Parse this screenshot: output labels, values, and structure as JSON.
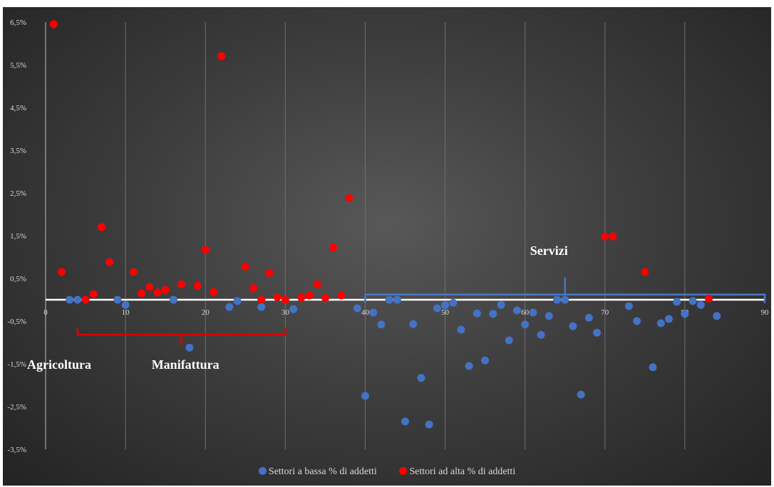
{
  "chart_data": {
    "type": "scatter",
    "title": "",
    "xlabel": "",
    "ylabel": "",
    "xlim": [
      0,
      90
    ],
    "ylim": [
      -3.5,
      6.5
    ],
    "x_ticks": [
      "0",
      "10",
      "20",
      "30",
      "40",
      "50",
      "60",
      "70",
      "80",
      "90"
    ],
    "y_ticks": [
      "6,5%",
      "5,5%",
      "4,5%",
      "3,5%",
      "2,5%",
      "1,5%",
      "0,5%",
      "-0,5%",
      "-1,5%",
      "-2,5%",
      "-3,5%"
    ],
    "grid": "vertical",
    "legend_position": "bottom",
    "series": [
      {
        "name": "Settori a bassa % di addetti",
        "color": "#4472c4",
        "points": [
          [
            3,
            0.0
          ],
          [
            4,
            0.0
          ],
          [
            9,
            0.0
          ],
          [
            10,
            -0.12
          ],
          [
            16,
            0.0
          ],
          [
            18,
            -1.12
          ],
          [
            23,
            -0.17
          ],
          [
            24,
            -0.03
          ],
          [
            27,
            -0.17
          ],
          [
            31,
            -0.22
          ],
          [
            39,
            -0.2
          ],
          [
            40,
            -2.25
          ],
          [
            41,
            -0.3
          ],
          [
            42,
            -0.58
          ],
          [
            43,
            0.0
          ],
          [
            44,
            0.0
          ],
          [
            45,
            -2.85
          ],
          [
            46,
            -0.57
          ],
          [
            47,
            -1.83
          ],
          [
            48,
            -2.92
          ],
          [
            49,
            -0.2
          ],
          [
            50,
            -0.13
          ],
          [
            51,
            -0.07
          ],
          [
            52,
            -0.7
          ],
          [
            53,
            -1.55
          ],
          [
            54,
            -0.32
          ],
          [
            55,
            -1.42
          ],
          [
            56,
            -0.33
          ],
          [
            57,
            -0.12
          ],
          [
            58,
            -0.95
          ],
          [
            59,
            -0.25
          ],
          [
            60,
            -0.58
          ],
          [
            61,
            -0.3
          ],
          [
            62,
            -0.82
          ],
          [
            63,
            -0.38
          ],
          [
            64,
            0.0
          ],
          [
            65,
            0.0
          ],
          [
            66,
            -0.62
          ],
          [
            67,
            -2.22
          ],
          [
            68,
            -0.42
          ],
          [
            69,
            -0.77
          ],
          [
            73,
            -0.15
          ],
          [
            74,
            -0.5
          ],
          [
            76,
            -1.58
          ],
          [
            77,
            -0.55
          ],
          [
            78,
            -0.45
          ],
          [
            79,
            -0.05
          ],
          [
            80,
            -0.33
          ],
          [
            81,
            -0.03
          ],
          [
            82,
            -0.12
          ],
          [
            84,
            -0.38
          ]
        ]
      },
      {
        "name": "Settori ad alta % di addetti",
        "color": "#ff0000",
        "points": [
          [
            1,
            6.45
          ],
          [
            2,
            0.65
          ],
          [
            5,
            0.0
          ],
          [
            6,
            0.13
          ],
          [
            7,
            1.7
          ],
          [
            8,
            0.88
          ],
          [
            11,
            0.65
          ],
          [
            12,
            0.15
          ],
          [
            13,
            0.3
          ],
          [
            14,
            0.17
          ],
          [
            15,
            0.23
          ],
          [
            17,
            0.36
          ],
          [
            19,
            0.33
          ],
          [
            20,
            1.17
          ],
          [
            21,
            0.18
          ],
          [
            22,
            5.7
          ],
          [
            25,
            0.78
          ],
          [
            26,
            0.27
          ],
          [
            27,
            0.0
          ],
          [
            28,
            0.63
          ],
          [
            29,
            0.06
          ],
          [
            30,
            0.0
          ],
          [
            32,
            0.05
          ],
          [
            33,
            0.1
          ],
          [
            34,
            0.36
          ],
          [
            35,
            0.04
          ],
          [
            36,
            1.22
          ],
          [
            37,
            0.1
          ],
          [
            38,
            2.38
          ],
          [
            70,
            1.48
          ],
          [
            71,
            1.48
          ],
          [
            75,
            0.65
          ],
          [
            83,
            0.03
          ]
        ]
      }
    ],
    "annotations": [
      {
        "text": "Agricoltura",
        "color": "#ffffff"
      },
      {
        "text": "Manifattura",
        "color": "#ffffff",
        "bracket_color": "#dd0000",
        "bracket_x": [
          4,
          30
        ]
      },
      {
        "text": "Servizi",
        "color": "#ffffff",
        "bracket_color": "#4a76c6",
        "bracket_x": [
          40,
          90
        ]
      }
    ],
    "zero_line_color": "#ffffff"
  }
}
